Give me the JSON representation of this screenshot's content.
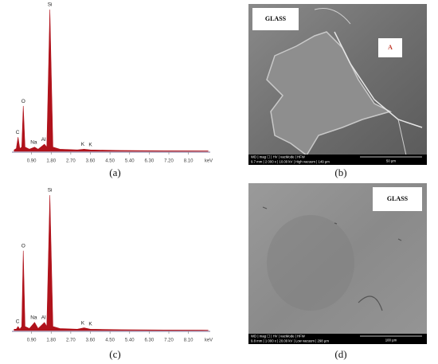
{
  "chart_data": [
    {
      "type": "area",
      "caption": "(a)",
      "color": "#b0121b",
      "x": [
        0.1,
        0.2,
        0.28,
        0.36,
        0.45,
        0.52,
        0.6,
        0.8,
        1.04,
        1.2,
        1.49,
        1.6,
        1.74,
        1.88,
        2.2,
        3.0,
        3.31,
        3.6,
        5.0,
        7.0,
        9.0
      ],
      "values": [
        1,
        2,
        10,
        2,
        3,
        32,
        3,
        1.5,
        3,
        1.5,
        5,
        3,
        100,
        3,
        1.5,
        1,
        1.5,
        1,
        0.6,
        0.4,
        0.3
      ],
      "xlim": [
        0,
        9.1
      ],
      "ylim": [
        0,
        100
      ],
      "xticks": [
        {
          "value": 0.9,
          "label": "0.90"
        },
        {
          "value": 1.8,
          "label": "1.80"
        },
        {
          "value": 2.7,
          "label": "2.70"
        },
        {
          "value": 3.6,
          "label": "3.60"
        },
        {
          "value": 4.5,
          "label": "4.50"
        },
        {
          "value": 5.4,
          "label": "5.40"
        },
        {
          "value": 6.3,
          "label": "6.30"
        },
        {
          "value": 7.2,
          "label": "7.20"
        },
        {
          "value": 8.1,
          "label": "8.10"
        }
      ],
      "x_unit": "keV",
      "annotations": [
        "C",
        "O",
        "Na",
        "Al",
        "Si",
        "K",
        "K"
      ]
    },
    {
      "type": "area",
      "caption": "(c)",
      "color": "#b0121b",
      "x": [
        0.1,
        0.2,
        0.28,
        0.36,
        0.45,
        0.52,
        0.6,
        0.8,
        1.04,
        1.2,
        1.49,
        1.6,
        1.74,
        1.88,
        2.2,
        3.0,
        3.31,
        3.6,
        5.0,
        7.0,
        9.0
      ],
      "values": [
        1,
        1,
        3,
        1,
        3,
        59,
        3,
        1.5,
        6,
        1.5,
        6,
        3,
        100,
        3,
        1.5,
        1,
        2,
        1,
        0.6,
        0.4,
        0.3
      ],
      "xlim": [
        0,
        9.1
      ],
      "ylim": [
        0,
        100
      ],
      "xticks": [
        {
          "value": 0.9,
          "label": "0.90"
        },
        {
          "value": 1.8,
          "label": "1.80"
        },
        {
          "value": 2.7,
          "label": "2.70"
        },
        {
          "value": 3.6,
          "label": "3.60"
        },
        {
          "value": 4.5,
          "label": "4.50"
        },
        {
          "value": 5.4,
          "label": "5.40"
        },
        {
          "value": 6.3,
          "label": "6.30"
        },
        {
          "value": 7.2,
          "label": "7.20"
        },
        {
          "value": 8.1,
          "label": "8.10"
        }
      ],
      "x_unit": "keV",
      "annotations": [
        "C",
        "O",
        "Na",
        "Al",
        "Si",
        "K",
        "K"
      ]
    }
  ],
  "images": [
    {
      "caption": "(b)",
      "labels": [
        "GLASS",
        "A"
      ],
      "info_header": "WD | mag ☐ | HV | vacMode | HFW",
      "info_values": "9.7 mm | 2 000 x | 10.00 kV | High vacuum | 149 µm",
      "scale": "50 µm"
    },
    {
      "caption": "(d)",
      "labels": [
        "GLASS"
      ],
      "info_header": "WD | mag ☐ | HV | vacMode | HFW",
      "info_values": "9.8 mm | 1 000 x | 20.00 kV | Low vacuum | 298 µm",
      "scale": "100 µm"
    }
  ]
}
